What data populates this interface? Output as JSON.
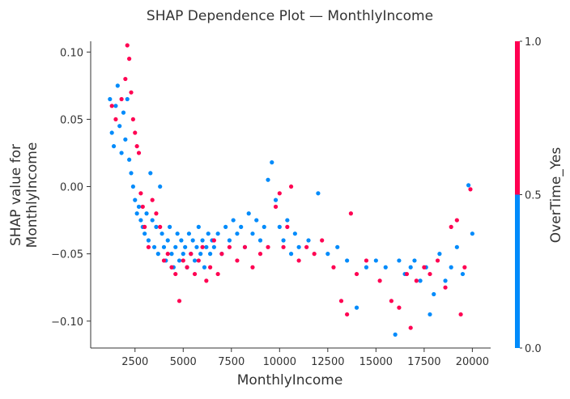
{
  "chart_data": {
    "type": "scatter",
    "title": "SHAP Dependence Plot — MonthlyIncome",
    "xlabel": "MonthlyIncome",
    "ylabel_lines": [
      "SHAP value for",
      "MonthlyIncome"
    ],
    "xlim": [
      200,
      20950
    ],
    "ylim": [
      -0.12,
      0.108
    ],
    "xticks": [
      2500,
      5000,
      7500,
      10000,
      12500,
      15000,
      17500,
      20000
    ],
    "xtick_labels": [
      "2500",
      "5000",
      "7500",
      "10000",
      "12500",
      "15000",
      "17500",
      "20000"
    ],
    "yticks": [
      -0.1,
      -0.05,
      0.0,
      0.05,
      0.1
    ],
    "ytick_labels": [
      "−0.10",
      "−0.05",
      "0.00",
      "0.05",
      "0.10"
    ],
    "grid": false,
    "colorbar": {
      "label": "OverTime_Yes",
      "min": 0.0,
      "max": 1.0,
      "ticks": [
        0.0,
        0.5,
        1.0
      ],
      "tick_labels": [
        "0.0",
        "0.5",
        "1.0"
      ],
      "low_color": "#008bfb",
      "high_color": "#ff0052"
    },
    "series": [
      {
        "overtime": 0,
        "color": "#008bfb",
        "points": [
          [
            1200,
            0.065
          ],
          [
            1300,
            0.04
          ],
          [
            1400,
            0.03
          ],
          [
            1500,
            0.06
          ],
          [
            1600,
            0.075
          ],
          [
            1700,
            0.045
          ],
          [
            1800,
            0.025
          ],
          [
            1900,
            0.055
          ],
          [
            2000,
            0.035
          ],
          [
            2100,
            0.065
          ],
          [
            2200,
            0.02
          ],
          [
            2300,
            0.01
          ],
          [
            2400,
            0.0
          ],
          [
            2500,
            -0.01
          ],
          [
            2600,
            -0.02
          ],
          [
            2700,
            -0.015
          ],
          [
            2800,
            -0.025
          ],
          [
            2900,
            -0.03
          ],
          [
            3000,
            -0.035
          ],
          [
            3100,
            -0.02
          ],
          [
            3200,
            -0.04
          ],
          [
            3300,
            0.01
          ],
          [
            3400,
            -0.025
          ],
          [
            3500,
            -0.045
          ],
          [
            3600,
            -0.03
          ],
          [
            3700,
            -0.05
          ],
          [
            3800,
            0.0
          ],
          [
            3900,
            -0.035
          ],
          [
            4000,
            -0.045
          ],
          [
            4100,
            -0.055
          ],
          [
            4200,
            -0.04
          ],
          [
            4300,
            -0.03
          ],
          [
            4400,
            -0.05
          ],
          [
            4500,
            -0.06
          ],
          [
            4600,
            -0.045
          ],
          [
            4700,
            -0.035
          ],
          [
            4800,
            -0.055
          ],
          [
            4900,
            -0.04
          ],
          [
            5000,
            -0.05
          ],
          [
            5100,
            -0.045
          ],
          [
            5200,
            -0.06
          ],
          [
            5300,
            -0.035
          ],
          [
            5400,
            -0.05
          ],
          [
            5500,
            -0.04
          ],
          [
            5600,
            -0.055
          ],
          [
            5700,
            -0.045
          ],
          [
            5800,
            -0.03
          ],
          [
            5900,
            -0.05
          ],
          [
            6000,
            -0.04
          ],
          [
            6100,
            -0.06
          ],
          [
            6200,
            -0.045
          ],
          [
            6300,
            -0.035
          ],
          [
            6400,
            -0.05
          ],
          [
            6500,
            -0.04
          ],
          [
            6600,
            -0.045
          ],
          [
            6800,
            -0.035
          ],
          [
            7000,
            -0.05
          ],
          [
            7200,
            -0.03
          ],
          [
            7400,
            -0.04
          ],
          [
            7600,
            -0.025
          ],
          [
            7800,
            -0.035
          ],
          [
            8000,
            -0.03
          ],
          [
            8200,
            -0.045
          ],
          [
            8400,
            -0.02
          ],
          [
            8600,
            -0.035
          ],
          [
            8800,
            -0.025
          ],
          [
            9000,
            -0.04
          ],
          [
            9200,
            -0.03
          ],
          [
            9400,
            0.005
          ],
          [
            9600,
            0.018
          ],
          [
            9800,
            -0.01
          ],
          [
            10000,
            -0.03
          ],
          [
            10200,
            -0.04
          ],
          [
            10400,
            -0.025
          ],
          [
            10600,
            -0.05
          ],
          [
            10800,
            -0.035
          ],
          [
            11000,
            -0.045
          ],
          [
            11500,
            -0.04
          ],
          [
            12000,
            -0.005
          ],
          [
            12500,
            -0.05
          ],
          [
            13000,
            -0.045
          ],
          [
            13500,
            -0.055
          ],
          [
            14000,
            -0.09
          ],
          [
            14500,
            -0.06
          ],
          [
            15000,
            -0.055
          ],
          [
            15500,
            -0.06
          ],
          [
            16000,
            -0.11
          ],
          [
            16200,
            -0.055
          ],
          [
            16500,
            -0.065
          ],
          [
            16800,
            -0.06
          ],
          [
            17000,
            -0.055
          ],
          [
            17300,
            -0.07
          ],
          [
            17600,
            -0.06
          ],
          [
            17800,
            -0.095
          ],
          [
            18000,
            -0.08
          ],
          [
            18300,
            -0.05
          ],
          [
            18600,
            -0.07
          ],
          [
            18900,
            -0.06
          ],
          [
            19200,
            -0.045
          ],
          [
            19500,
            -0.065
          ],
          [
            19800,
            0.001
          ],
          [
            20000,
            -0.035
          ]
        ]
      },
      {
        "overtime": 1,
        "color": "#ff0052",
        "points": [
          [
            1300,
            0.06
          ],
          [
            1500,
            0.05
          ],
          [
            1800,
            0.065
          ],
          [
            2000,
            0.08
          ],
          [
            2100,
            0.105
          ],
          [
            2200,
            0.095
          ],
          [
            2300,
            0.07
          ],
          [
            2400,
            0.05
          ],
          [
            2500,
            0.04
          ],
          [
            2600,
            0.03
          ],
          [
            2700,
            0.025
          ],
          [
            2800,
            -0.005
          ],
          [
            2900,
            -0.015
          ],
          [
            3000,
            -0.03
          ],
          [
            3200,
            -0.045
          ],
          [
            3400,
            -0.01
          ],
          [
            3600,
            -0.02
          ],
          [
            3800,
            -0.03
          ],
          [
            4000,
            -0.055
          ],
          [
            4200,
            -0.05
          ],
          [
            4400,
            -0.06
          ],
          [
            4600,
            -0.065
          ],
          [
            4800,
            -0.085
          ],
          [
            5000,
            -0.055
          ],
          [
            5200,
            -0.06
          ],
          [
            5400,
            -0.05
          ],
          [
            5600,
            -0.065
          ],
          [
            5800,
            -0.055
          ],
          [
            6000,
            -0.045
          ],
          [
            6200,
            -0.07
          ],
          [
            6400,
            -0.06
          ],
          [
            6600,
            -0.04
          ],
          [
            6800,
            -0.065
          ],
          [
            7000,
            -0.05
          ],
          [
            7400,
            -0.045
          ],
          [
            7800,
            -0.055
          ],
          [
            8200,
            -0.045
          ],
          [
            8600,
            -0.06
          ],
          [
            9000,
            -0.05
          ],
          [
            9400,
            -0.045
          ],
          [
            9800,
            -0.015
          ],
          [
            10000,
            -0.005
          ],
          [
            10200,
            -0.045
          ],
          [
            10400,
            -0.03
          ],
          [
            10600,
            0.0
          ],
          [
            11000,
            -0.055
          ],
          [
            11400,
            -0.045
          ],
          [
            11800,
            -0.05
          ],
          [
            12200,
            -0.04
          ],
          [
            12800,
            -0.06
          ],
          [
            13200,
            -0.085
          ],
          [
            13500,
            -0.095
          ],
          [
            13700,
            -0.02
          ],
          [
            14000,
            -0.065
          ],
          [
            14500,
            -0.055
          ],
          [
            15200,
            -0.07
          ],
          [
            15800,
            -0.085
          ],
          [
            16200,
            -0.09
          ],
          [
            16600,
            -0.065
          ],
          [
            16800,
            -0.105
          ],
          [
            17100,
            -0.07
          ],
          [
            17500,
            -0.06
          ],
          [
            17800,
            -0.065
          ],
          [
            18200,
            -0.055
          ],
          [
            18600,
            -0.075
          ],
          [
            18900,
            -0.03
          ],
          [
            19200,
            -0.025
          ],
          [
            19400,
            -0.095
          ],
          [
            19600,
            -0.06
          ],
          [
            19900,
            -0.002
          ]
        ]
      }
    ]
  }
}
